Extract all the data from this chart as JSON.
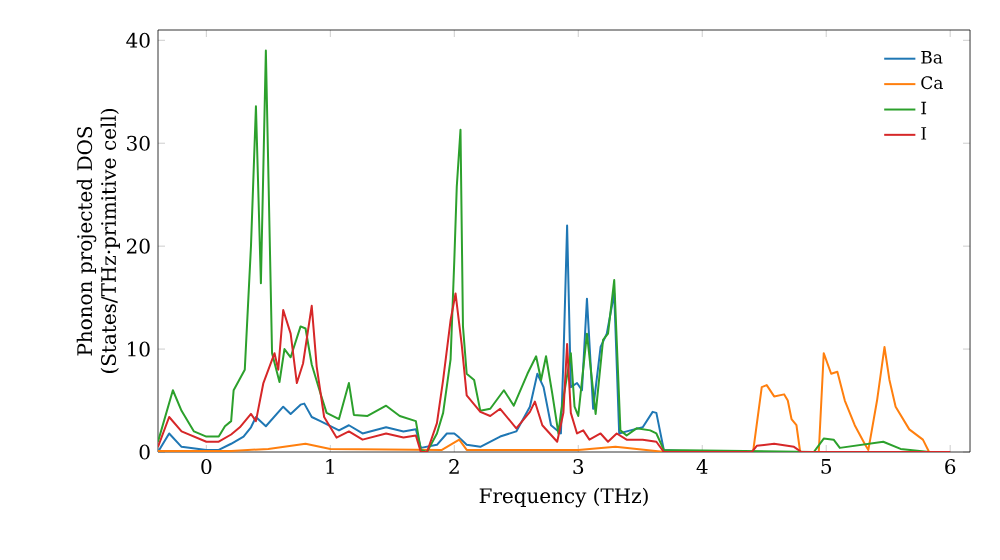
{
  "chart_data": {
    "type": "line",
    "xlabel": "Frequency (THz)",
    "ylabel": "Phonon projected DOS (States/THz·primitive cell)",
    "xlim": [
      -0.39,
      6.16
    ],
    "ylim": [
      0,
      41
    ],
    "xticks": [
      0,
      1,
      2,
      3,
      4,
      5,
      6
    ],
    "yticks": [
      0,
      10,
      20,
      30,
      40
    ],
    "grid": false,
    "legend": "top right",
    "marker": "none",
    "line_style": "solid",
    "series": [
      {
        "name": "Ba",
        "color": "#1f77b4",
        "x": [
          -0.39,
          -0.3,
          -0.2,
          0,
          0.1,
          0.2,
          0.3,
          0.36,
          0.4,
          0.48,
          0.62,
          0.68,
          0.76,
          0.79,
          0.85,
          0.92,
          1.07,
          1.15,
          1.26,
          1.45,
          1.59,
          1.69,
          1.73,
          1.86,
          1.94,
          2.0,
          2.04,
          2.1,
          2.21,
          2.37,
          2.5,
          2.61,
          2.67,
          2.72,
          2.78,
          2.86,
          2.88,
          2.91,
          2.94,
          2.99,
          3.03,
          3.07,
          3.12,
          3.18,
          3.23,
          3.29,
          3.33,
          3.42,
          3.52,
          3.6,
          3.63,
          3.69,
          4.0
        ],
        "values": [
          0,
          1.8,
          0.5,
          0.2,
          0.2,
          0.8,
          1.5,
          2.4,
          3.4,
          2.5,
          4.4,
          3.7,
          4.6,
          4.7,
          3.4,
          3.0,
          2.1,
          2.6,
          1.8,
          2.4,
          2.0,
          2.2,
          0.4,
          0.7,
          1.8,
          1.8,
          1.4,
          0.7,
          0.5,
          1.5,
          2.0,
          4.4,
          7.6,
          6.3,
          2.6,
          1.8,
          8.9,
          22,
          6.3,
          6.7,
          6.0,
          14.9,
          4.2,
          10.2,
          11.5,
          15.4,
          1.8,
          2.1,
          2.4,
          3.9,
          3.8,
          0.2,
          0
        ]
      },
      {
        "name": "Ca",
        "color": "#ff7f0e",
        "x": [
          -0.39,
          0.2,
          0.5,
          0.8,
          1.0,
          1.9,
          2.04,
          2.1,
          3.0,
          3.3,
          3.7,
          4.41,
          4.48,
          4.52,
          4.58,
          4.66,
          4.69,
          4.72,
          4.76,
          4.79,
          4.94,
          4.98,
          5.04,
          5.09,
          5.15,
          5.23,
          5.31,
          5.34,
          5.41,
          5.47,
          5.51,
          5.56,
          5.67,
          5.78,
          5.83
        ],
        "values": [
          0.1,
          0.1,
          0.3,
          0.8,
          0.3,
          0.2,
          1.2,
          0.2,
          0.2,
          0.5,
          0,
          0,
          6.3,
          6.5,
          5.4,
          5.6,
          5.0,
          3.2,
          2.6,
          0,
          0,
          9.6,
          7.6,
          7.8,
          5.0,
          2.6,
          0.8,
          0.2,
          5.0,
          10.2,
          7.0,
          4.4,
          2.2,
          1.2,
          0
        ]
      },
      {
        "name": "I",
        "color": "#2ca02c",
        "x": [
          -0.39,
          -0.27,
          -0.2,
          -0.1,
          0,
          0.1,
          0.15,
          0.2,
          0.22,
          0.31,
          0.36,
          0.4,
          0.44,
          0.48,
          0.53,
          0.59,
          0.63,
          0.68,
          0.76,
          0.8,
          0.85,
          0.92,
          0.97,
          1.07,
          1.15,
          1.19,
          1.3,
          1.45,
          1.56,
          1.69,
          1.73,
          1.78,
          1.86,
          1.91,
          1.97,
          2.0,
          2.02,
          2.05,
          2.07,
          2.1,
          2.16,
          2.21,
          2.29,
          2.4,
          2.48,
          2.59,
          2.66,
          2.7,
          2.74,
          2.79,
          2.84,
          2.86,
          2.94,
          2.97,
          3.0,
          3.07,
          3.14,
          3.2,
          3.24,
          3.29,
          3.34,
          3.39,
          3.47,
          3.58,
          3.63,
          3.69,
          4.9,
          4.98,
          5.06,
          5.11,
          5.46,
          5.6,
          5.83
        ],
        "values": [
          1,
          6,
          4,
          2,
          1.5,
          1.5,
          2.5,
          3,
          6,
          8,
          20,
          33.6,
          16.4,
          39,
          9.6,
          6.8,
          10,
          9.2,
          12.2,
          12,
          8.5,
          5.7,
          3.8,
          3.2,
          6.7,
          3.6,
          3.5,
          4.5,
          3.5,
          3,
          0.2,
          0,
          1.8,
          3.8,
          9,
          18.6,
          25.8,
          31.3,
          12.2,
          7.6,
          7,
          4,
          4.2,
          6,
          4.5,
          7.6,
          9.3,
          7,
          9.3,
          5.7,
          1.8,
          3.8,
          9.6,
          4.4,
          3.5,
          11.5,
          3.7,
          10.9,
          11.5,
          16.7,
          2.1,
          1.6,
          2.3,
          2.1,
          1.8,
          0.2,
          0,
          1.3,
          1.2,
          0.4,
          1.0,
          0.3,
          0
        ]
      },
      {
        "name": "I",
        "color": "#d62728",
        "x": [
          -0.39,
          -0.3,
          -0.2,
          -0.1,
          0,
          0.1,
          0.2,
          0.27,
          0.36,
          0.4,
          0.46,
          0.55,
          0.58,
          0.62,
          0.68,
          0.73,
          0.78,
          0.85,
          0.89,
          0.95,
          1.05,
          1.15,
          1.26,
          1.45,
          1.59,
          1.69,
          1.73,
          1.78,
          1.86,
          1.91,
          1.97,
          2.01,
          2.06,
          2.1,
          2.21,
          2.29,
          2.37,
          2.5,
          2.61,
          2.65,
          2.71,
          2.83,
          2.88,
          2.91,
          2.94,
          2.99,
          3.04,
          3.09,
          3.18,
          3.24,
          3.31,
          3.39,
          3.52,
          3.63,
          3.69,
          4.4,
          4.44,
          4.58,
          4.74,
          4.8,
          6.0
        ],
        "values": [
          0.5,
          3.4,
          2,
          1.5,
          1,
          1,
          1.7,
          2.4,
          3.7,
          3,
          6.7,
          9.6,
          8,
          13.8,
          11.5,
          6.7,
          8.6,
          14.2,
          8.3,
          3.4,
          1.4,
          2.0,
          1.2,
          1.8,
          1.4,
          1.6,
          0,
          0,
          2.8,
          7,
          12.8,
          15.4,
          10.4,
          5.5,
          3.9,
          3.5,
          4.2,
          2.3,
          3.9,
          4.9,
          2.6,
          1.0,
          3.8,
          10.5,
          3.8,
          1.8,
          2.1,
          1.2,
          1.8,
          1,
          1.8,
          1.2,
          1.2,
          1.0,
          0,
          0,
          0.6,
          0.8,
          0.5,
          0,
          0
        ]
      }
    ]
  }
}
